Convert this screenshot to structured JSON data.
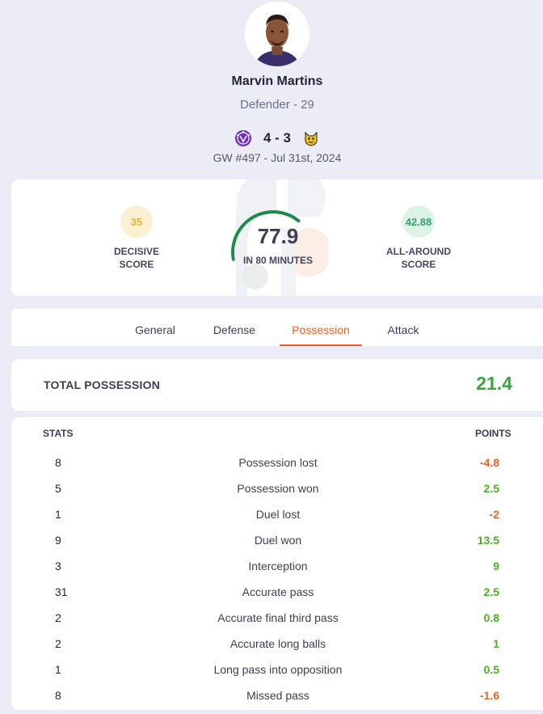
{
  "player": {
    "name": "Marvin Martins",
    "position_age": "Defender - 29"
  },
  "match": {
    "score": "4 - 3",
    "home_badge": "austria-wien-badge",
    "away_badge": "elfsborg-badge",
    "gameweek": "GW #497 - Jul 31st, 2024"
  },
  "scores": {
    "decisive_value": "35",
    "decisive_label_1": "DECISIVE",
    "decisive_label_2": "SCORE",
    "main_value": "77.9",
    "main_label": "IN 80 MINUTES",
    "main_fraction": 0.779,
    "allaround_value": "42.88",
    "allaround_label_1": "ALL-AROUND",
    "allaround_label_2": "SCORE"
  },
  "tabs": [
    {
      "label": "General",
      "active": false
    },
    {
      "label": "Defense",
      "active": false
    },
    {
      "label": "Possession",
      "active": true
    },
    {
      "label": "Attack",
      "active": false
    }
  ],
  "total": {
    "label": "TOTAL POSSESSION",
    "value": "21.4"
  },
  "table": {
    "header_stats": "STATS",
    "header_points": "POINTS",
    "rows": [
      {
        "count": "8",
        "name": "Possession lost",
        "points": "-4.8",
        "sign": "neg"
      },
      {
        "count": "5",
        "name": "Possession won",
        "points": "2.5",
        "sign": "pos"
      },
      {
        "count": "1",
        "name": "Duel lost",
        "points": "-2",
        "sign": "neg"
      },
      {
        "count": "9",
        "name": "Duel won",
        "points": "13.5",
        "sign": "pos"
      },
      {
        "count": "3",
        "name": "Interception",
        "points": "9",
        "sign": "pos"
      },
      {
        "count": "31",
        "name": "Accurate pass",
        "points": "2.5",
        "sign": "pos"
      },
      {
        "count": "2",
        "name": "Accurate final third pass",
        "points": "0.8",
        "sign": "pos"
      },
      {
        "count": "2",
        "name": "Accurate long balls",
        "points": "1",
        "sign": "pos"
      },
      {
        "count": "1",
        "name": "Long pass into opposition",
        "points": "0.5",
        "sign": "pos"
      },
      {
        "count": "8",
        "name": "Missed pass",
        "points": "-1.6",
        "sign": "neg"
      }
    ]
  },
  "colors": {
    "accent": "#f06022",
    "positive": "#4caf1f",
    "gauge": "#1f8a4c"
  }
}
